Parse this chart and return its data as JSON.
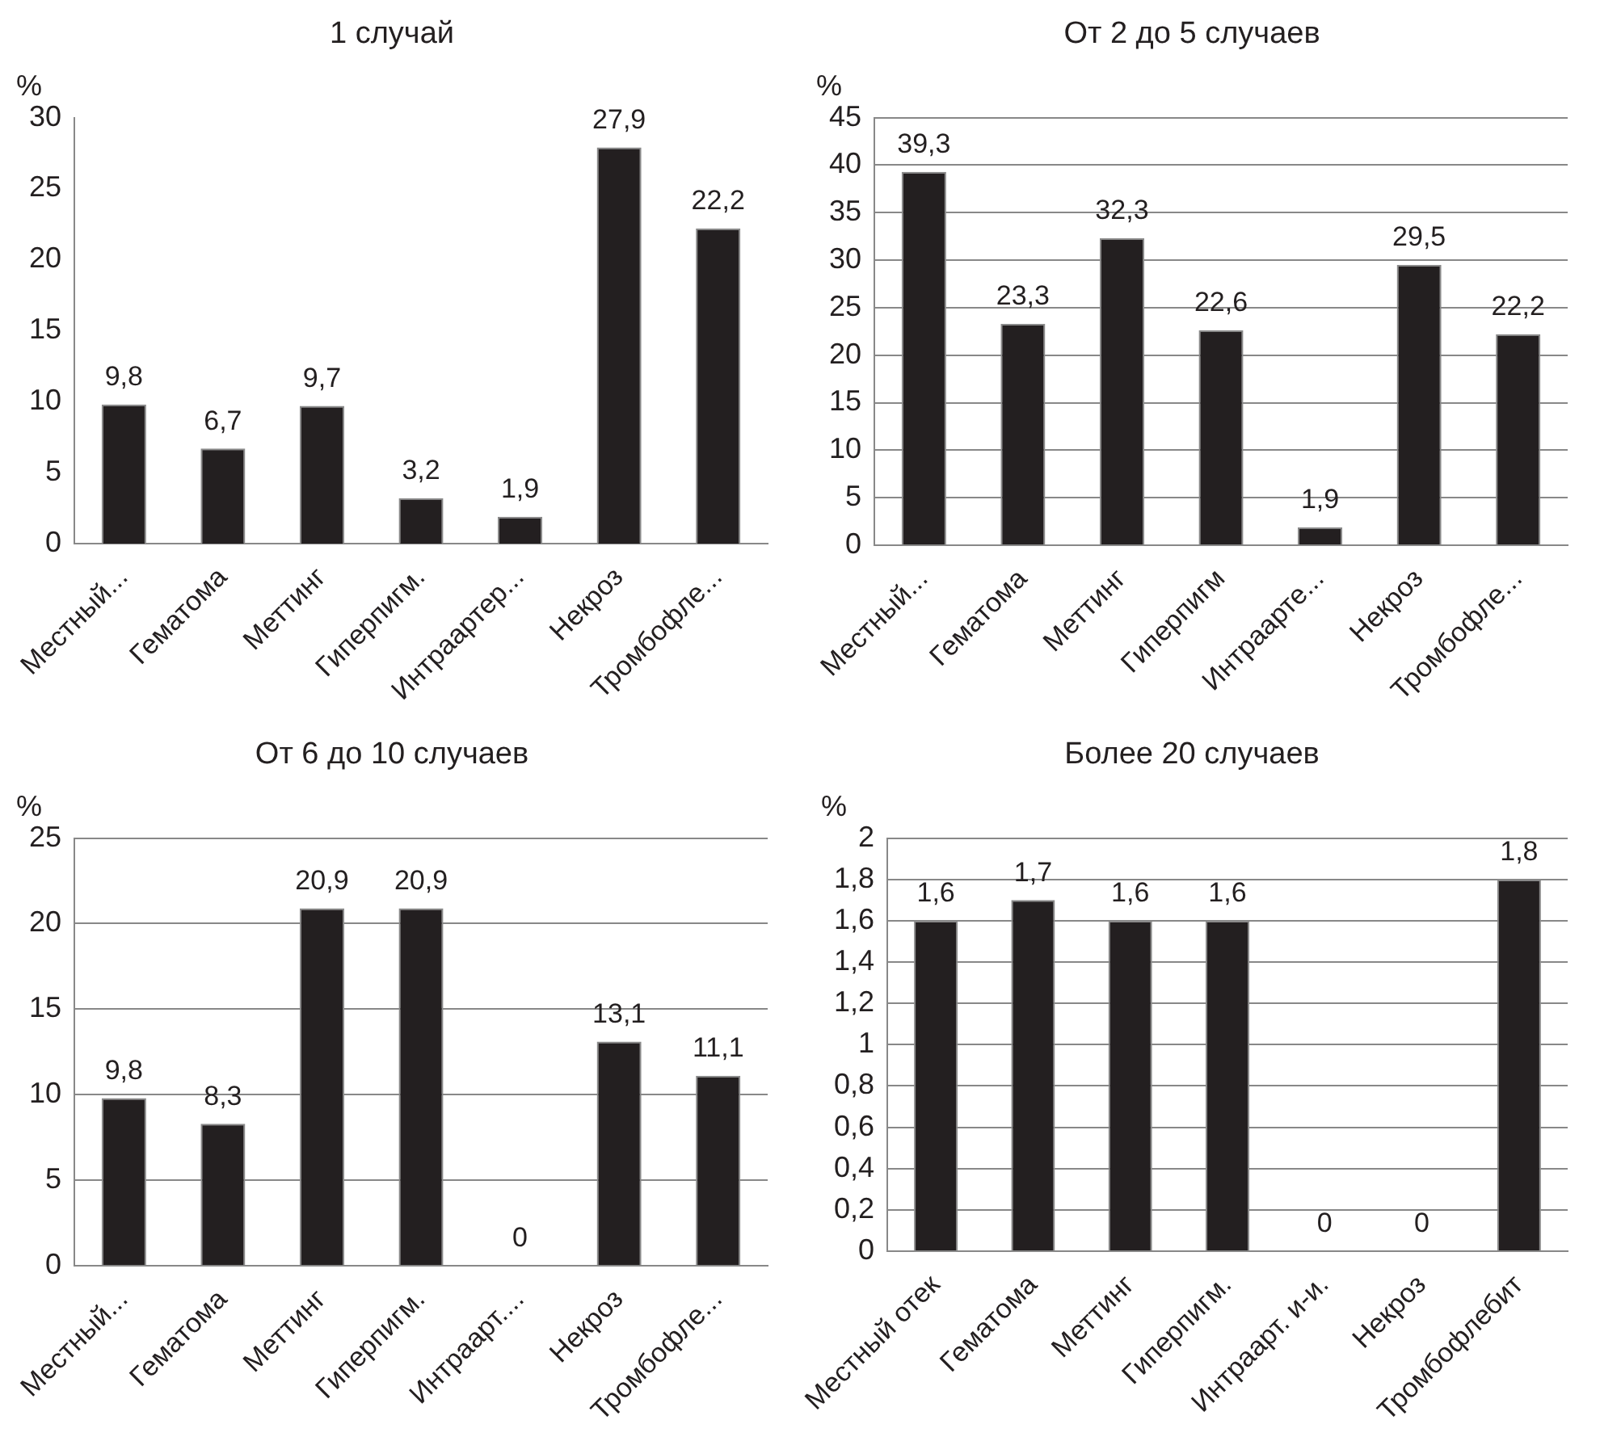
{
  "chart_data": [
    {
      "type": "bar",
      "title": "1 случай",
      "ylabel": "%",
      "categories": [
        "Местный...",
        "Гематома",
        "Меттинг",
        "Гиперпигм.",
        "Интраартер...",
        "Некроз",
        "Тромбофле..."
      ],
      "values": [
        9.8,
        6.7,
        9.7,
        3.2,
        1.9,
        27.9,
        22.2
      ],
      "value_labels": [
        "9,8",
        "6,7",
        "9,7",
        "3,2",
        "1,9",
        "27,9",
        "22,2"
      ],
      "color": "#231f20",
      "ylim": [
        0,
        30
      ],
      "yticks": [
        0,
        5,
        10,
        15,
        20,
        25,
        30
      ],
      "grid": false
    },
    {
      "type": "bar",
      "title": "От 2 до 5 случаев",
      "ylabel": "%",
      "categories": [
        "Местный...",
        "Гематома",
        "Меттинг",
        "Гиперпигм",
        "Интраарте...",
        "Некроз",
        "Тромбофле..."
      ],
      "values": [
        39.3,
        23.3,
        32.3,
        22.6,
        1.9,
        29.5,
        22.2
      ],
      "value_labels": [
        "39,3",
        "23,3",
        "32,3",
        "22,6",
        "1,9",
        "29,5",
        "22,2"
      ],
      "color": "#231f20",
      "ylim": [
        0,
        45
      ],
      "yticks": [
        0,
        5,
        10,
        15,
        20,
        25,
        30,
        35,
        40,
        45
      ],
      "grid": "y"
    },
    {
      "type": "bar",
      "title": "От 6 до 10 случаев",
      "ylabel": "%",
      "categories": [
        "Местный...",
        "Гематома",
        "Меттинг",
        "Гиперпигм.",
        "Интраарт....",
        "Некроз",
        "Тромбофле..."
      ],
      "values": [
        9.8,
        8.3,
        20.9,
        20.9,
        0,
        13.1,
        11.1
      ],
      "value_labels": [
        "9,8",
        "8,3",
        "20,9",
        "20,9",
        "0",
        "13,1",
        "11,1"
      ],
      "color": "#231f20",
      "ylim": [
        0,
        25
      ],
      "yticks": [
        0,
        5,
        10,
        15,
        20,
        25
      ],
      "grid": "y"
    },
    {
      "type": "bar",
      "title": "Более 20 случаев",
      "ylabel": "%",
      "categories": [
        "Местный отек",
        "Гематома",
        "Меттинг",
        "Гиперпигм.",
        "Интраарт. и-и.",
        "Некроз",
        "Тромбофлебит"
      ],
      "values": [
        1.6,
        1.7,
        1.6,
        1.6,
        0,
        0,
        1.8
      ],
      "value_labels": [
        "1,6",
        "1,7",
        "1,6",
        "1,6",
        "0",
        "0",
        "1,8"
      ],
      "color": "#231f20",
      "ylim": [
        0,
        2
      ],
      "yticks": [
        0,
        {
          "value": 0.2,
          "label": "0,2"
        },
        {
          "value": 0.4,
          "label": "0,4"
        },
        {
          "value": 0.6,
          "label": "0,6"
        },
        {
          "value": 0.8,
          "label": "0,8"
        },
        1,
        {
          "value": 1.2,
          "label": "1,2"
        },
        {
          "value": 1.4,
          "label": "1,4"
        },
        {
          "value": 1.6,
          "label": "1,6"
        },
        {
          "value": 1.8,
          "label": "1,8"
        },
        2
      ],
      "grid": "y"
    }
  ]
}
